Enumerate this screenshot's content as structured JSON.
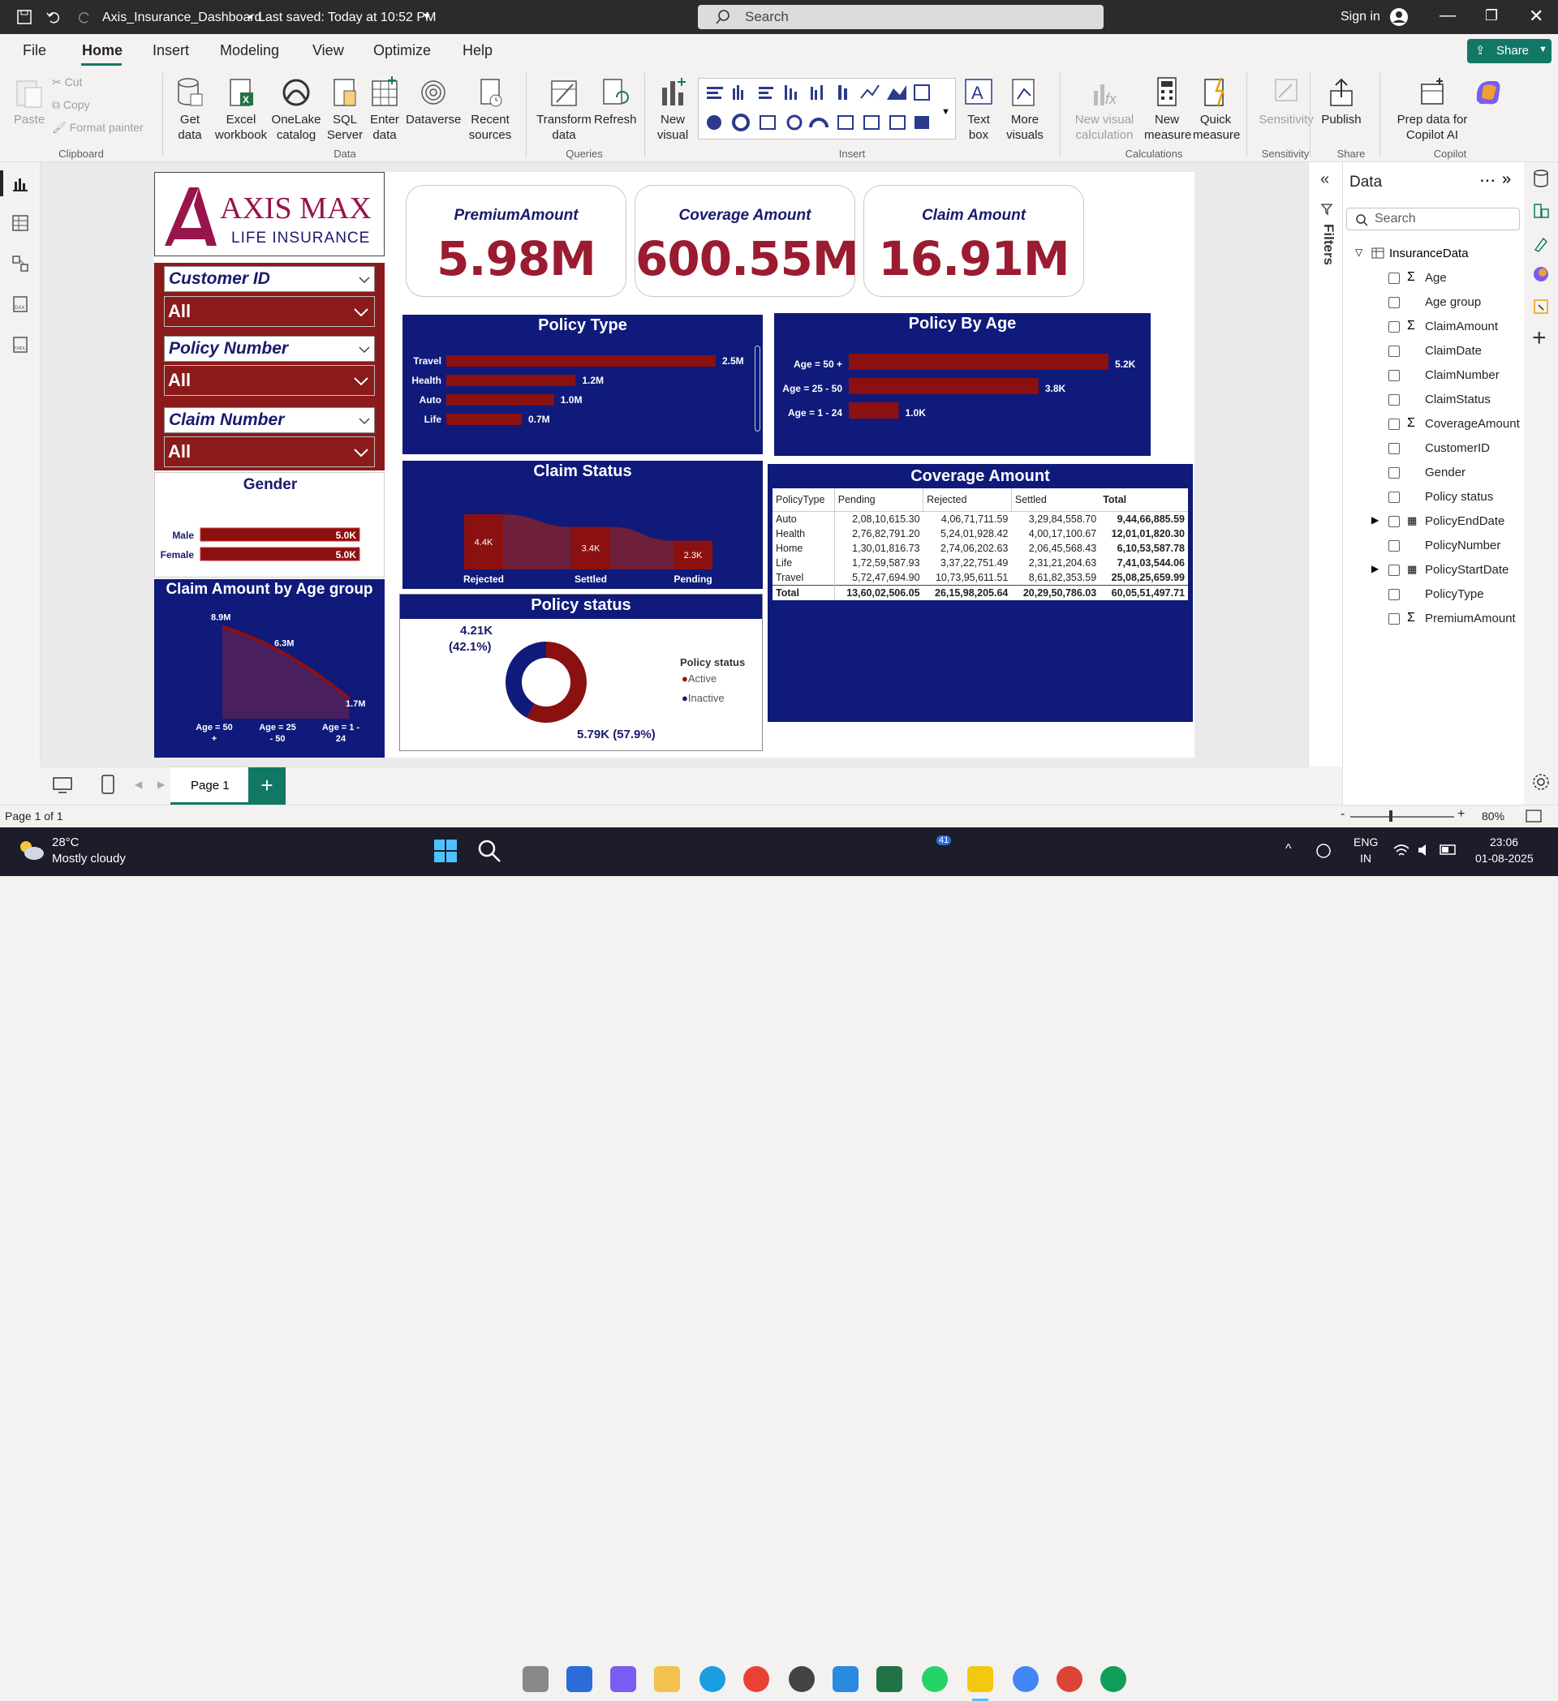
{
  "titlebar": {
    "doc_title": "Axis_Insurance_Dashboard",
    "saved": "Last saved: Today at 10:52 PM",
    "search_placeholder": "Search",
    "signin": "Sign in"
  },
  "menu": [
    "File",
    "Home",
    "Insert",
    "Modeling",
    "View",
    "Optimize",
    "Help"
  ],
  "share_label": "Share",
  "ribbon": {
    "clipboard": {
      "paste": "Paste",
      "cut": "Cut",
      "copy": "Copy",
      "format_painter": "Format painter",
      "group": "Clipboard"
    },
    "data": {
      "get_data": "Get data",
      "excel": "Excel workbook",
      "onelake": "OneLake catalog",
      "sql": "SQL Server",
      "enter": "Enter data",
      "dataverse": "Dataverse",
      "recent": "Recent sources",
      "group": "Data"
    },
    "queries": {
      "transform": "Transform data",
      "refresh": "Refresh",
      "group": "Queries"
    },
    "insert": {
      "new_visual": "New visual",
      "text_box": "Text box",
      "more_visuals": "More visuals",
      "group": "Insert"
    },
    "calculations": {
      "new_visual_calc": "New visual calculation",
      "new_measure": "New measure",
      "quick_measure": "Quick measure",
      "group": "Calculations"
    },
    "sensitivity": {
      "label": "Sensitivity",
      "group": "Sensitivity"
    },
    "share": {
      "publish": "Publish",
      "group": "Share"
    },
    "copilot": {
      "prep": "Prep data for Copilot AI",
      "copilot": "Copilot",
      "group": "Copilot"
    }
  },
  "logo": {
    "line1": "AXIS MAX",
    "line2": "LIFE INSURANCE"
  },
  "kpis": [
    {
      "label": "PremiumAmount",
      "value": "5.98M"
    },
    {
      "label": "Coverage Amount",
      "value": "600.55M"
    },
    {
      "label": "Claim Amount",
      "value": "16.91M"
    }
  ],
  "slicers": [
    {
      "label": "Customer ID",
      "value": "All"
    },
    {
      "label": "Policy Number",
      "value": "All"
    },
    {
      "label": "Claim Number",
      "value": "All"
    }
  ],
  "gender": {
    "title": "Gender",
    "rows": [
      {
        "label": "Male",
        "value": "5.0K"
      },
      {
        "label": "Female",
        "value": "5.0K"
      }
    ]
  },
  "claim_by_age": {
    "title": "Claim Amount by Age group"
  },
  "policy_type": {
    "title": "Policy Type"
  },
  "policy_age": {
    "title": "Policy By Age"
  },
  "claim_status": {
    "title": "Claim Status"
  },
  "policy_status": {
    "title": "Policy status",
    "legend_title": "Policy status",
    "legend": [
      "Active",
      "Inactive"
    ],
    "label_inactive": "4.21K",
    "label_inactive_pct": "(42.1%)",
    "label_active": "5.79K (57.9%)"
  },
  "coverage_table": {
    "title": "Coverage Amount",
    "headers": [
      "PolicyType",
      "Pending",
      "Rejected",
      "Settled",
      "Total"
    ],
    "rows": [
      [
        "Auto",
        "2,08,10,615.30",
        "4,06,71,711.59",
        "3,29,84,558.70",
        "9,44,66,885.59"
      ],
      [
        "Health",
        "2,76,82,791.20",
        "5,24,01,928.42",
        "4,00,17,100.67",
        "12,01,01,820.30"
      ],
      [
        "Home",
        "1,30,01,816.73",
        "2,74,06,202.63",
        "2,06,45,568.43",
        "6,10,53,587.78"
      ],
      [
        "Life",
        "1,72,59,587.93",
        "3,37,22,751.49",
        "2,31,21,204.63",
        "7,41,03,544.06"
      ],
      [
        "Travel",
        "5,72,47,694.90",
        "10,73,95,611.51",
        "8,61,82,353.59",
        "25,08,25,659.99"
      ]
    ],
    "total": [
      "Total",
      "13,60,02,506.05",
      "26,15,98,205.64",
      "20,29,50,786.03",
      "60,05,51,497.71"
    ]
  },
  "chart_data": [
    {
      "type": "bar",
      "title": "Policy Type",
      "categories": [
        "Travel",
        "Health",
        "Auto",
        "Life"
      ],
      "values": [
        2.5,
        1.2,
        1.0,
        0.7
      ],
      "labels": [
        "2.5M",
        "1.2M",
        "1.0M",
        "0.7M"
      ]
    },
    {
      "type": "bar",
      "title": "Policy By Age",
      "categories": [
        "Age = 50 +",
        "Age = 25 - 50",
        "Age = 1 - 24"
      ],
      "values": [
        5.2,
        3.8,
        1.0
      ],
      "labels": [
        "5.2K",
        "3.8K",
        "1.0K"
      ]
    },
    {
      "type": "bar",
      "title": "Gender",
      "categories": [
        "Male",
        "Female"
      ],
      "values": [
        5.0,
        5.0
      ],
      "labels": [
        "5.0K",
        "5.0K"
      ]
    },
    {
      "type": "area",
      "title": "Claim Status",
      "categories": [
        "Rejected",
        "Settled",
        "Pending"
      ],
      "values": [
        4.4,
        3.4,
        2.3
      ],
      "labels": [
        "4.4K",
        "3.4K",
        "2.3K"
      ]
    },
    {
      "type": "area",
      "title": "Claim Amount by Age group",
      "categories": [
        "Age = 50 +",
        "Age = 25 - 50",
        "Age = 1 - 24"
      ],
      "values": [
        8.9,
        6.3,
        1.7
      ],
      "labels": [
        "8.9M",
        "6.3M",
        "1.7M"
      ]
    },
    {
      "type": "pie",
      "title": "Policy status",
      "categories": [
        "Active",
        "Inactive"
      ],
      "values": [
        5.79,
        4.21
      ],
      "colors": [
        "#8b1010",
        "#0f1a7a"
      ]
    }
  ],
  "filters_label": "Filters",
  "data_pane": {
    "title": "Data",
    "search_placeholder": "Search",
    "table": "InsuranceData",
    "fields": [
      "Age",
      "Age group",
      "ClaimAmount",
      "ClaimDate",
      "ClaimNumber",
      "ClaimStatus",
      "CoverageAmount",
      "CustomerID",
      "Gender",
      "Policy status",
      "PolicyEndDate",
      "PolicyNumber",
      "PolicyStartDate",
      "PolicyType",
      "PremiumAmount"
    ]
  },
  "page_tab": "Page 1",
  "status": {
    "page": "Page 1 of 1",
    "zoom": "80%"
  },
  "taskbar": {
    "temp": "28°C",
    "weather": "Mostly cloudy",
    "lang1": "ENG",
    "lang2": "IN",
    "time": "23:06",
    "date": "01-08-2025",
    "badge": "41"
  }
}
